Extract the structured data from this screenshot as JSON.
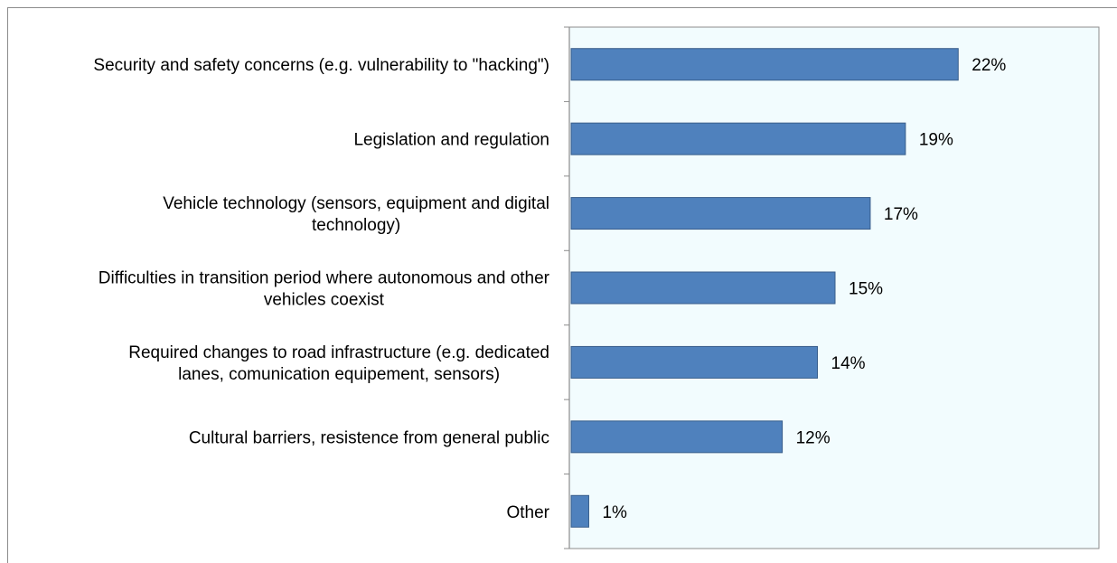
{
  "chart_data": {
    "type": "bar",
    "orientation": "horizontal",
    "categories": [
      "Security and safety concerns (e.g. vulnerability to \"hacking\")",
      "Legislation and regulation",
      "Vehicle technology (sensors, equipment and digital technology)",
      "Difficulties in transition period where autonomous and other vehicles coexist",
      "Required changes to road infrastructure (e.g. dedicated lanes, comunication equipement, sensors)",
      "Cultural barriers, resistence from general public",
      "Other"
    ],
    "category_lines": [
      [
        "Security and safety concerns (e.g. vulnerability to \"hacking\")"
      ],
      [
        "Legislation and regulation"
      ],
      [
        "Vehicle technology (sensors, equipment and digital",
        "technology)"
      ],
      [
        "Difficulties in transition period where autonomous and other",
        "vehicles coexist"
      ],
      [
        "Required changes to road infrastructure (e.g. dedicated",
        "lanes, comunication equipement, sensors)"
      ],
      [
        "Cultural barriers, resistence from general public"
      ],
      [
        "Other"
      ]
    ],
    "values": [
      22,
      19,
      17,
      15,
      14,
      12,
      1
    ],
    "value_labels": [
      "22%",
      "19%",
      "17%",
      "15%",
      "14%",
      "12%",
      "1%"
    ],
    "unit": "%",
    "title": "",
    "xlabel": "",
    "ylabel": "",
    "xlim": [
      0,
      30
    ],
    "grid": false,
    "legend": "none",
    "colors": {
      "bar_fill": "#4f81bd",
      "bar_stroke": "#385d8a",
      "plot_background": "#f2fcfe",
      "plot_border": "#8c8c8c",
      "axis": "#8c8c8c",
      "text": "#000000"
    }
  }
}
